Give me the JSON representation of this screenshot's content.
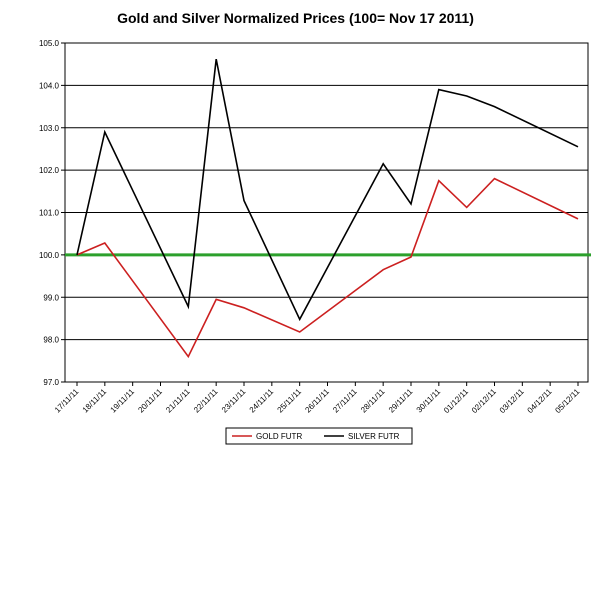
{
  "chart_data": {
    "type": "line",
    "title": "Gold and Silver Normalized Prices  (100= Nov 17 2011)",
    "categories": [
      "17/11/11",
      "18/11/11",
      "19/11/11",
      "20/11/11",
      "21/11/11",
      "22/11/11",
      "23/11/11",
      "24/11/11",
      "25/11/11",
      "26/11/11",
      "27/11/11",
      "28/11/11",
      "29/11/11",
      "30/11/11",
      "01/12/11",
      "02/12/11",
      "03/12/11",
      "04/12/11",
      "05/12/11"
    ],
    "ylim": [
      97.0,
      105.0
    ],
    "yticks": [
      "97.0",
      "98.0",
      "99.0",
      "100.0",
      "101.0",
      "102.0",
      "103.0",
      "104.0",
      "105.0"
    ],
    "grid": true,
    "legend_position": "bottom",
    "reference_line": {
      "value": 100.0,
      "color": "#2ca02c"
    },
    "series": [
      {
        "name": "GOLD  FUTR",
        "color": "#cc2020",
        "points": [
          [
            0,
            100.0
          ],
          [
            1,
            100.28
          ],
          [
            4,
            97.6
          ],
          [
            5,
            98.95
          ],
          [
            6,
            98.75
          ],
          [
            8,
            98.18
          ],
          [
            11,
            99.65
          ],
          [
            12,
            99.95
          ],
          [
            13,
            101.75
          ],
          [
            14,
            101.12
          ],
          [
            15,
            101.8
          ],
          [
            18,
            100.85
          ]
        ]
      },
      {
        "name": "SILVER  FUTR",
        "color": "#000000",
        "points": [
          [
            0,
            100.0
          ],
          [
            1,
            102.9
          ],
          [
            4,
            98.78
          ],
          [
            5,
            104.62
          ],
          [
            6,
            101.28
          ],
          [
            8,
            98.48
          ],
          [
            11,
            102.15
          ],
          [
            12,
            101.2
          ],
          [
            13,
            103.9
          ],
          [
            14,
            103.75
          ],
          [
            15,
            103.5
          ],
          [
            18,
            102.55
          ]
        ]
      }
    ]
  }
}
